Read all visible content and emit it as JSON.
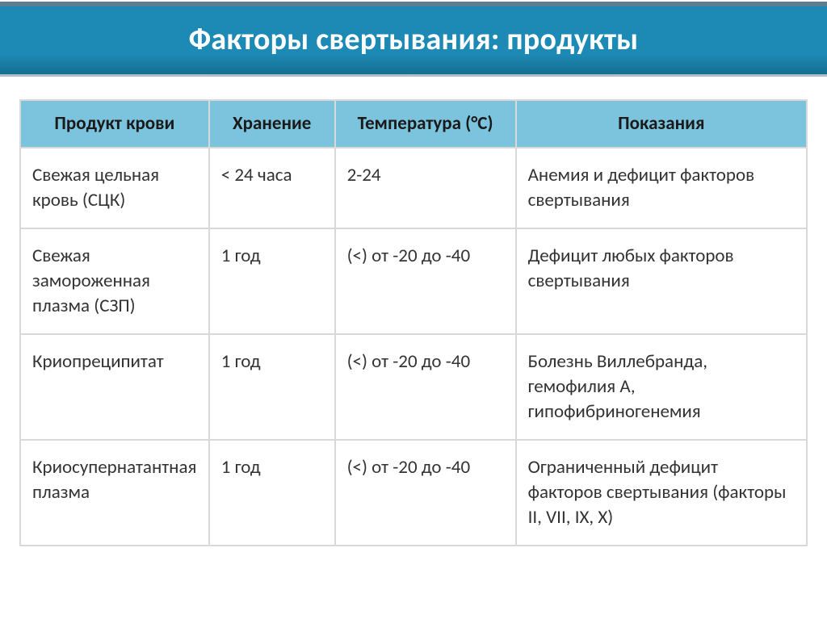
{
  "title": "Факторы свертывания: продукты",
  "colors": {
    "header_band_top": "#1d8ab6",
    "header_band_bottom": "#156f90",
    "header_border_bottom": "#b0bfc6",
    "thead_bg": "#7cc4de",
    "cell_border": "#d9d9d9",
    "text_dark": "#1a1a1a",
    "text_body": "#333333",
    "page_bg": "#ffffff"
  },
  "typography": {
    "title_fontsize_pt": 28,
    "header_fontsize_pt": 17,
    "cell_fontsize_pt": 17,
    "font_family": "Calibri"
  },
  "table": {
    "type": "table",
    "column_widths_pct": [
      24,
      16,
      23,
      37
    ],
    "columns": [
      "Продукт крови",
      "Хранение",
      "Температура (°C)",
      "Показания"
    ],
    "rows": [
      {
        "product": "Свежая цельная кровь (СЦК)",
        "storage": "< 24 часа",
        "temperature": "2-24",
        "indication": "Анемия и дефицит факторов свертывания"
      },
      {
        "product": "Свежая замороженная плазма (СЗП)",
        "storage": "1 год",
        "temperature": "(<) от -20 до -40",
        "indication": "Дефицит любых факторов свертывания"
      },
      {
        "product": "Криопреципитат",
        "storage": "1 год",
        "temperature": "(<) от -20 до -40",
        "indication": "Болезнь Виллебранда, гемофилия А, гипофибриногенемия"
      },
      {
        "product": "Криосупернатантная плазма",
        "storage": "1 год",
        "temperature": "(<) от -20 до -40",
        "indication": "Ограниченный дефицит факторов свертывания (факторы II, VII, IX, X)"
      }
    ]
  }
}
